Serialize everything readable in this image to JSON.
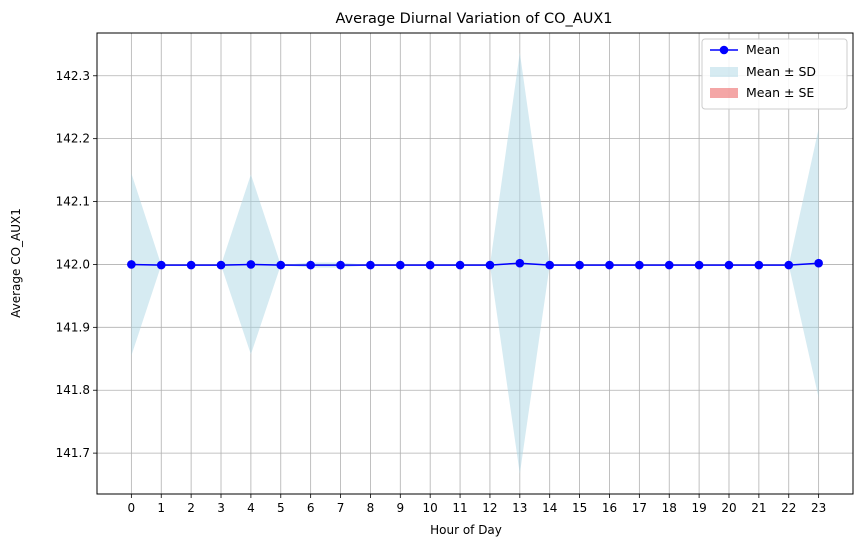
{
  "chart_data": {
    "type": "line",
    "title": "Average Diurnal Variation of CO_AUX1",
    "xlabel": "Hour of Day",
    "ylabel": "Average CO_AUX1",
    "x": [
      0,
      1,
      2,
      3,
      4,
      5,
      6,
      7,
      8,
      9,
      10,
      11,
      12,
      13,
      14,
      15,
      16,
      17,
      18,
      19,
      20,
      21,
      22,
      23
    ],
    "xlim": [
      -1.15,
      24.15
    ],
    "ylim": [
      141.635,
      142.368
    ],
    "yticks": [
      141.7,
      141.8,
      141.9,
      142.0,
      142.1,
      142.2,
      142.3
    ],
    "grid": true,
    "legend_position": "top-right",
    "series": [
      {
        "name": "Mean",
        "kind": "line-marker",
        "color": "#0000ff",
        "values": [
          142.0,
          141.999,
          141.999,
          141.999,
          142.0,
          141.999,
          141.999,
          141.999,
          141.999,
          141.999,
          141.999,
          141.999,
          141.999,
          142.002,
          141.999,
          141.999,
          141.999,
          141.999,
          141.999,
          141.999,
          141.999,
          141.999,
          141.999,
          142.002
        ]
      },
      {
        "name": "Mean ± SD",
        "kind": "band",
        "color": "#add8e6",
        "upper": [
          142.145,
          141.999,
          141.999,
          141.999,
          142.143,
          141.999,
          142.003,
          142.003,
          141.999,
          141.999,
          141.999,
          141.999,
          141.999,
          142.337,
          141.999,
          141.999,
          141.999,
          141.999,
          141.999,
          141.999,
          141.999,
          141.999,
          141.999,
          142.216
        ],
        "lower": [
          141.855,
          141.999,
          141.999,
          141.999,
          141.857,
          141.999,
          141.995,
          141.995,
          141.999,
          141.999,
          141.999,
          141.999,
          141.999,
          141.667,
          141.999,
          141.999,
          141.999,
          141.999,
          141.999,
          141.999,
          141.999,
          141.999,
          141.999,
          141.788
        ]
      },
      {
        "name": "Mean ± SE",
        "kind": "band",
        "color": "#f08080",
        "upper": [
          142.001,
          141.999,
          141.999,
          141.999,
          142.001,
          141.999,
          141.999,
          141.999,
          141.999,
          141.999,
          141.999,
          141.999,
          141.999,
          142.003,
          141.999,
          141.999,
          141.999,
          141.999,
          141.999,
          141.999,
          141.999,
          141.999,
          141.999,
          142.003
        ],
        "lower": [
          141.999,
          141.999,
          141.999,
          141.999,
          141.999,
          141.999,
          141.999,
          141.999,
          141.999,
          141.999,
          141.999,
          141.999,
          141.999,
          142.001,
          141.999,
          141.999,
          141.999,
          141.999,
          141.999,
          141.999,
          141.999,
          141.999,
          141.999,
          142.001
        ]
      }
    ]
  }
}
